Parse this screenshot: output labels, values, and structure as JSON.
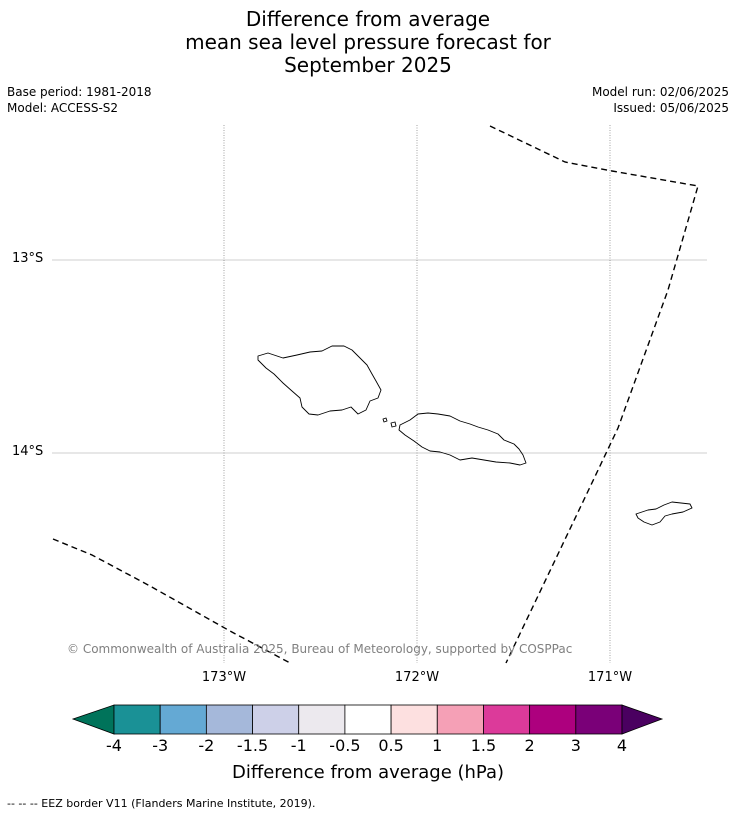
{
  "title": {
    "line1": "Difference from average",
    "line2": "mean sea level pressure forecast for",
    "line3": "September 2025"
  },
  "meta": {
    "base_period": "Base period: 1981-2018",
    "model": "Model: ACCESS-S2",
    "model_run": "Model run: 02/06/2025",
    "issued": "Issued: 05/06/2025"
  },
  "map": {
    "lat_labels": [
      "13°S",
      "14°S"
    ],
    "lon_labels": [
      "173°W",
      "172°W",
      "171°W"
    ],
    "copyright": "© Commonwealth of Australia 2025, Bureau of Meteorology, supported by COSPPac",
    "eez_color": "#000000",
    "coast_color": "#000000",
    "grid_color": "#bfbfbf"
  },
  "colorbar": {
    "title": "Difference from average (hPa)",
    "tick_labels": [
      "-4",
      "-3",
      "-2",
      "-1.5",
      "-1",
      "-0.5",
      "0.5",
      "1",
      "1.5",
      "2",
      "3",
      "4"
    ],
    "under_color": "#00735a",
    "over_color": "#4a0060",
    "colors": [
      "#1a9196",
      "#64a9d4",
      "#a5b8da",
      "#cdd0e8",
      "#ece9ee",
      "#ffffff",
      "#fde0e0",
      "#f5a0b6",
      "#dc3a9a",
      "#ad007e",
      "#7a0078"
    ]
  },
  "footer": {
    "legend": "--  --  -- EEZ border V11 (Flanders Marine Institute, 2019)."
  }
}
